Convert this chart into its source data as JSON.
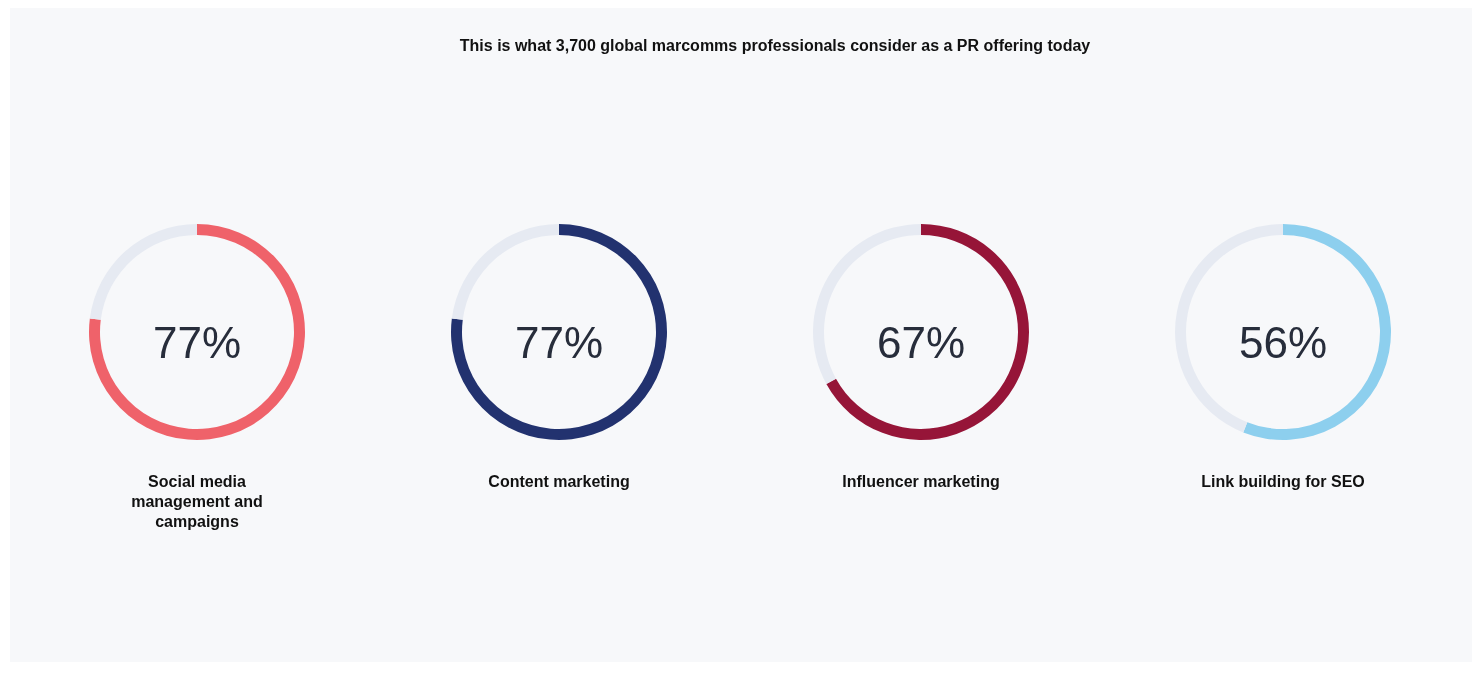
{
  "chart_data": [
    {
      "type": "donut",
      "title": "This is what 3,700 global marcomms professionals consider as a PR offering today",
      "categories": [
        "Social media management and campaigns",
        null
      ],
      "values": [
        77,
        23
      ],
      "colors": [
        "#ef626a",
        "#e6eaf2"
      ],
      "value_labels": [
        "77%",
        null
      ]
    },
    {
      "type": "donut",
      "categories": [
        "Content marketing",
        null
      ],
      "values": [
        77,
        23
      ],
      "colors": [
        "#22326f",
        "#e6eaf2"
      ],
      "value_labels": [
        "77%",
        null
      ]
    },
    {
      "type": "donut",
      "categories": [
        "Influencer marketing",
        null
      ],
      "values": [
        67,
        33
      ],
      "colors": [
        "#961538",
        "#e6eaf2"
      ],
      "value_labels": [
        "67%",
        null
      ]
    },
    {
      "type": "donut",
      "categories": [
        "Link building for SEO",
        null
      ],
      "values": [
        56,
        44
      ],
      "colors": [
        "#8dcfee",
        "#e6eaf2"
      ],
      "value_labels": [
        "56%",
        null
      ]
    }
  ]
}
